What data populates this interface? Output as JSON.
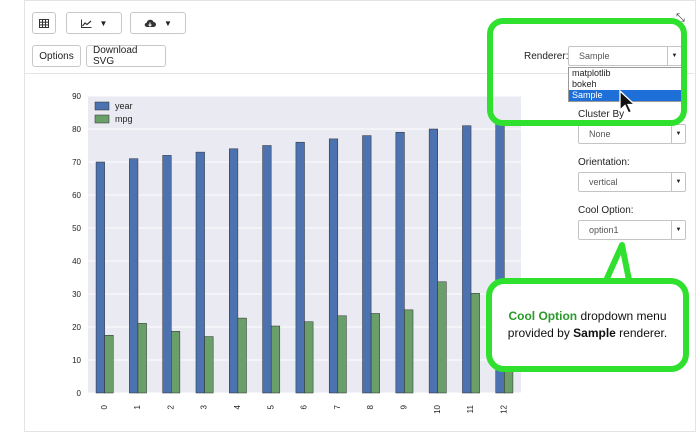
{
  "toolbar": {
    "table_icon": "table-icon",
    "chart_icon": "line-chart-icon",
    "download_icon": "cloud-download-icon",
    "options_label": "Options",
    "download_svg_label": "Download SVG"
  },
  "renderer": {
    "label": "Renderer:",
    "selected": "Sample",
    "options": [
      "matplotlib",
      "bokeh",
      "Sample"
    ]
  },
  "cluster_by": {
    "label": "Cluster By",
    "value": "None"
  },
  "orientation": {
    "label": "Orientation:",
    "value": "vertical"
  },
  "cool_option": {
    "label": "Cool Option:",
    "value": "option1"
  },
  "callout": {
    "bold1": "Cool Option",
    "text1": " dropdown menu provided by ",
    "bold2": "Sample",
    "text2": " renderer."
  },
  "colors": {
    "year": "#4c72b0",
    "mpg": "#6a9f6a",
    "highlight": "#2fe02f",
    "plot_bg": "#eaeaf2"
  },
  "chart_data": {
    "type": "bar",
    "categories": [
      "0",
      "1",
      "2",
      "3",
      "4",
      "5",
      "6",
      "7",
      "8",
      "9",
      "10",
      "11",
      "12"
    ],
    "series": [
      {
        "name": "year",
        "values": [
          70,
          71,
          72,
          73,
          74,
          75,
          76,
          77,
          78,
          79,
          80,
          81,
          82
        ]
      },
      {
        "name": "mpg",
        "values": [
          17.5,
          21.1,
          18.7,
          17.1,
          22.7,
          20.3,
          21.6,
          23.4,
          24.1,
          25.2,
          33.7,
          30.2,
          31.7
        ]
      }
    ],
    "yticks": [
      0,
      10,
      20,
      30,
      40,
      50,
      60,
      70,
      80,
      90
    ],
    "ylim": [
      0,
      90
    ],
    "legend": "top-left",
    "grid": true
  }
}
